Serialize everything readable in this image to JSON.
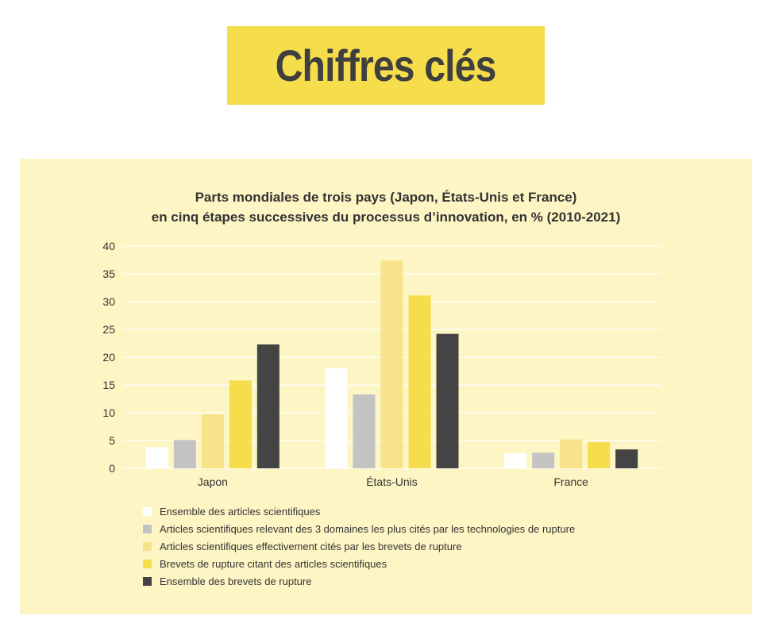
{
  "header": {
    "title": "Chiffres clés"
  },
  "chart_data": {
    "type": "bar",
    "title_lines": [
      "Parts mondiales de trois pays (Japon, États-Unis et France)",
      "en cinq étapes successives du processus d’innovation, en % (2010-2021)"
    ],
    "xlabel": "",
    "ylabel": "",
    "categories": [
      "Japon",
      "États-Unis",
      "France"
    ],
    "ylim": [
      0,
      40
    ],
    "yticks": [
      "0",
      "5",
      "10",
      "15",
      "20",
      "25",
      "30",
      "35",
      "40"
    ],
    "grid": true,
    "legend_position": "bottom",
    "series": [
      {
        "name": "Ensemble des articles scientifiques",
        "color": "#ffffff",
        "values": [
          3.8,
          18.0,
          2.7
        ]
      },
      {
        "name": "Articles scientifiques relevant des 3 domaines les plus cités par les technologies de rupture",
        "color": "#c3c3c3",
        "values": [
          5.1,
          13.3,
          2.8
        ]
      },
      {
        "name": "Articles scientifiques effectivement cités par les brevets de rupture",
        "color": "#f7e48a",
        "values": [
          9.7,
          37.4,
          5.2
        ]
      },
      {
        "name": "Brevets de rupture citant des articles scientifiques",
        "color": "#f5dd4b",
        "values": [
          15.8,
          31.1,
          4.7
        ]
      },
      {
        "name": "Ensemble des brevets de rupture",
        "color": "#444444",
        "values": [
          22.3,
          24.2,
          3.4
        ]
      }
    ]
  }
}
